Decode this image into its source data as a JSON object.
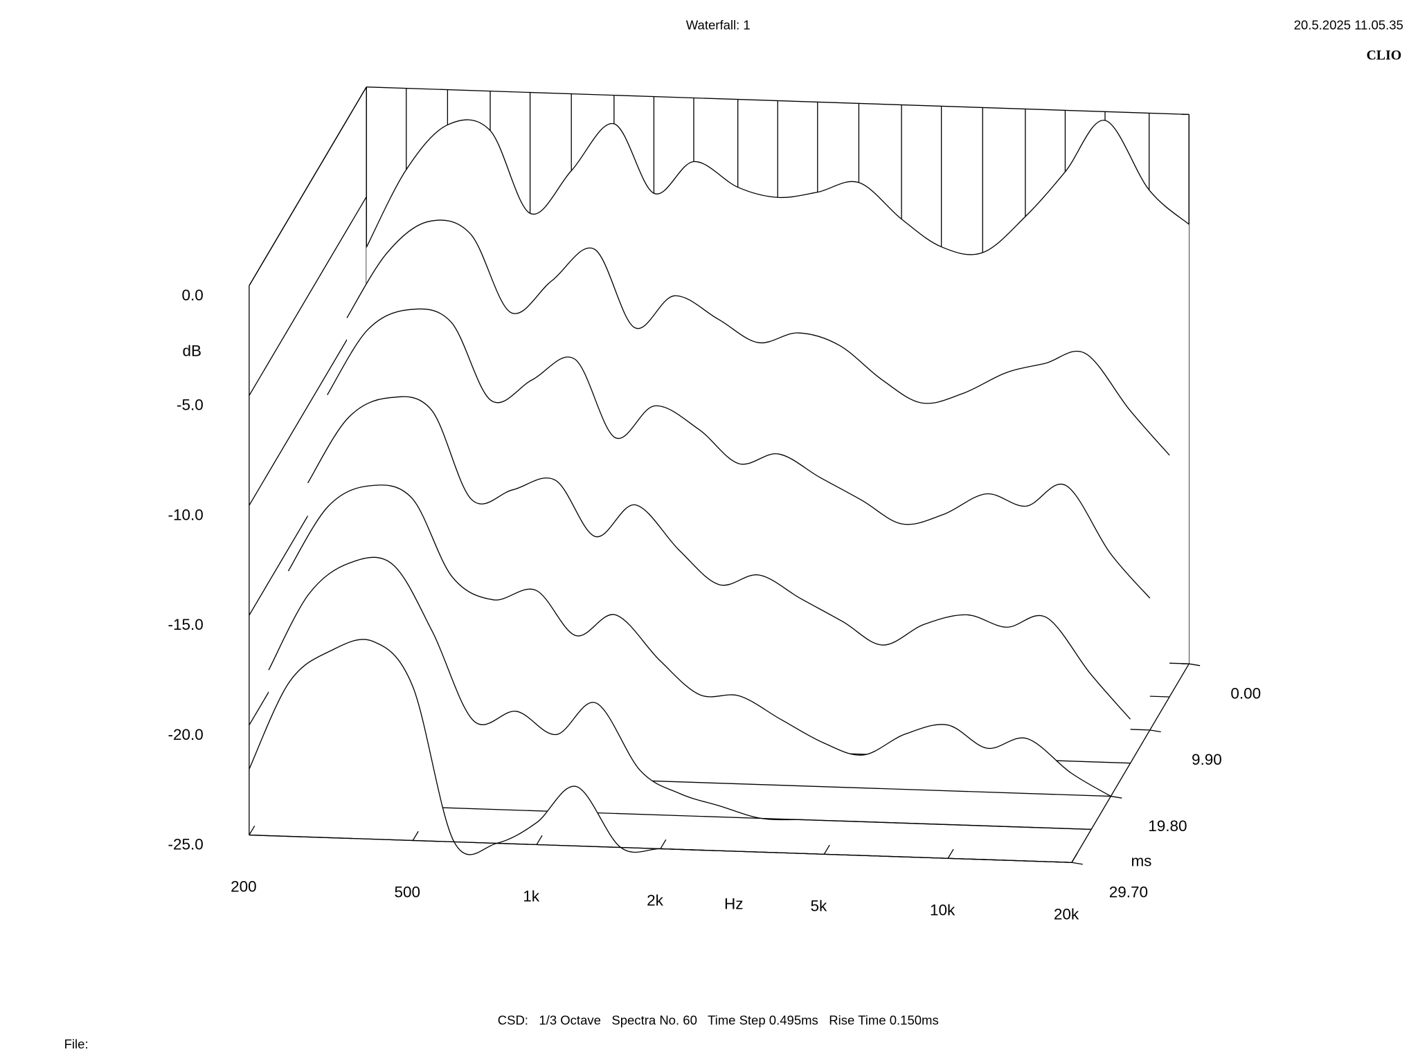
{
  "chart_data": {
    "type": "waterfall",
    "title": "Waterfall: 1",
    "timestamp": "20.5.2025 11.05.35",
    "brand": "CLIO",
    "footer": "CSD:   1/3 Octave   Spectra No. 60   Time Step 0.495ms   Rise Time 0.150ms",
    "file_label": "File:",
    "y_label": "dB",
    "x_label": "Hz",
    "z_label": "ms",
    "xscale": "log",
    "color": "#000000",
    "xlim": [
      200,
      20000
    ],
    "ylim": [
      -25,
      0
    ],
    "zlim": [
      0,
      29.7
    ],
    "xticks": [
      200,
      500,
      {
        "value": 1000,
        "label": "1k"
      },
      {
        "value": 2000,
        "label": "2k"
      },
      {
        "value": 5000,
        "label": "5k"
      },
      {
        "value": 10000,
        "label": "10k"
      },
      {
        "value": 20000,
        "label": "20k"
      }
    ],
    "yticks": [
      {
        "value": 0,
        "label": "0.0"
      },
      {
        "value": -5,
        "label": "-5.0"
      },
      {
        "value": -10,
        "label": "-10.0"
      },
      {
        "value": -15,
        "label": "-15.0"
      },
      {
        "value": -20,
        "label": "-20.0"
      },
      {
        "value": -25,
        "label": "-25.0"
      }
    ],
    "zticks": [
      {
        "value": 0,
        "label": "0.00"
      },
      {
        "value": 9.9,
        "label": "9.90"
      },
      {
        "value": 19.8,
        "label": "19.80"
      },
      {
        "value": 29.7,
        "label": "29.70"
      }
    ],
    "x": [
      200,
      250,
      315,
      400,
      500,
      630,
      800,
      1000,
      1250,
      1600,
      2000,
      2500,
      3150,
      4000,
      5000,
      6300,
      8000,
      10000,
      12500,
      16000,
      20000
    ],
    "z": [
      0,
      4.95,
      9.9,
      14.85,
      19.8,
      24.75,
      29.7
    ],
    "series": [
      {
        "values": [
          -7.3,
          -3.7,
          -1.6,
          -1.8,
          -5.5,
          -3.5,
          -1.3,
          -4.4,
          -2.9,
          -4.0,
          -4.4,
          -4.1,
          -3.6,
          -5.2,
          -6.4,
          -6.6,
          -4.9,
          -2.8,
          -0.4,
          -3.5,
          -5.0
        ]
      },
      {
        "values": [
          -9,
          -6,
          -4.5,
          -5,
          -8.5,
          -7,
          -5.5,
          -9,
          -7.5,
          -8.5,
          -9.5,
          -9,
          -9.5,
          -11,
          -12,
          -11.5,
          -10.5,
          -10,
          -9.5,
          -12,
          -14
        ]
      },
      {
        "values": [
          -11,
          -8,
          -7,
          -7.5,
          -11,
          -10,
          -9,
          -12.5,
          -11,
          -12,
          -13.5,
          -13,
          -14,
          -15,
          -16,
          -15.5,
          -14.5,
          -15,
          -14,
          -17,
          -19
        ]
      },
      {
        "values": [
          -13.5,
          -10.5,
          -9.5,
          -10,
          -14,
          -13.5,
          -13,
          -15.5,
          -14,
          -16,
          -17.5,
          -17,
          -18,
          -19,
          -20,
          -19,
          -18.5,
          -19,
          -18.5,
          -21,
          -23
        ]
      },
      {
        "values": [
          -16,
          -13,
          -12,
          -12.5,
          -16,
          -17,
          -16.5,
          -18.5,
          -17.5,
          -19.5,
          -21,
          -21,
          -22,
          -23,
          -23.5,
          -22.5,
          -22,
          -23,
          -22.5,
          -24,
          -25
        ]
      },
      {
        "values": [
          -19,
          -15.5,
          -14,
          -14,
          -17,
          -21,
          -20.5,
          -21.5,
          -20,
          -23,
          -24,
          -24.5,
          -25,
          -25,
          -25,
          -25,
          -25,
          -25,
          -25,
          -25,
          -25
        ]
      },
      {
        "values": [
          -22,
          -18,
          -16.5,
          -16,
          -18,
          -25,
          -25,
          -24,
          -22.3,
          -25,
          -25,
          -25,
          -25,
          -25,
          -25,
          -25,
          -25,
          -25,
          -25,
          -25,
          -25
        ]
      }
    ]
  }
}
